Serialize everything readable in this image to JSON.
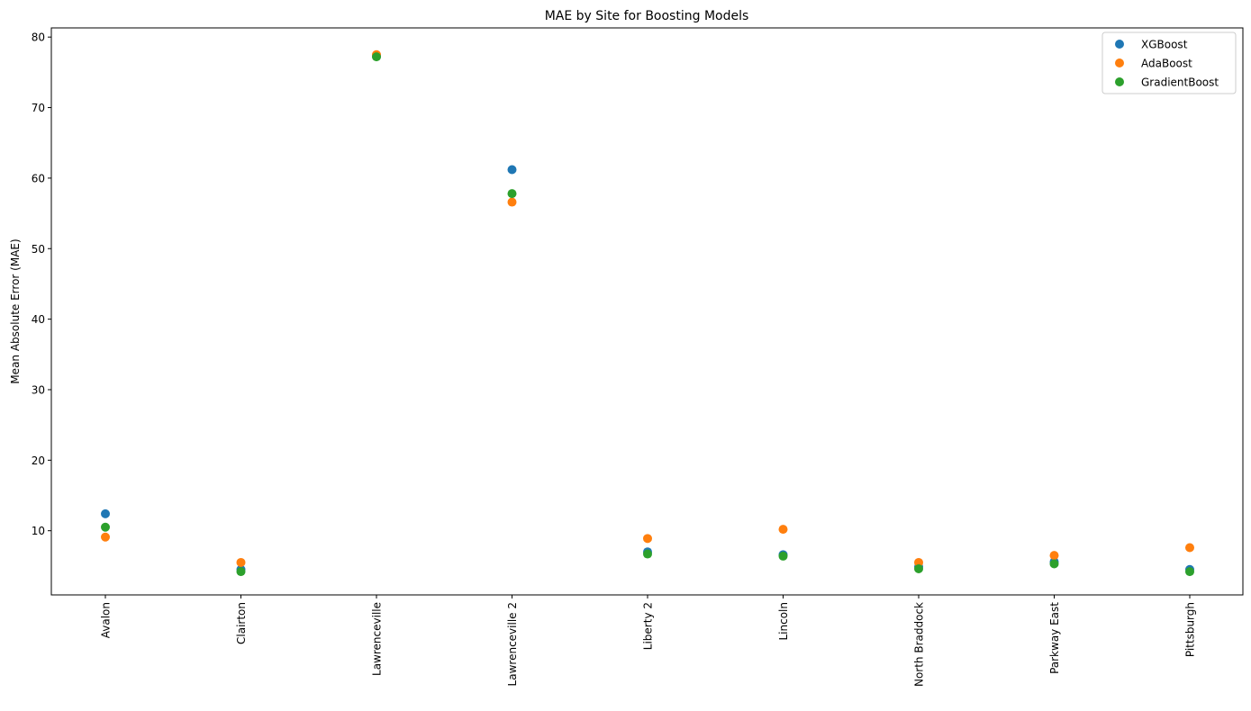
{
  "chart_data": {
    "type": "scatter",
    "title": "MAE by Site for Boosting Models",
    "xlabel": "",
    "ylabel": "Mean Absolute Error (MAE)",
    "categories": [
      "Avalon",
      "Clairton",
      "Lawrenceville",
      "Lawrenceville 2",
      "Liberty 2",
      "Lincoln",
      "North Braddock",
      "Parkway East",
      "Pittsburgh"
    ],
    "ylim": [
      0.9,
      81.3
    ],
    "yticks": [
      10,
      20,
      30,
      40,
      50,
      60,
      70,
      80
    ],
    "grid": false,
    "legend_position": "top-right",
    "series": [
      {
        "name": "XGBoost",
        "color": "#1f77b4",
        "values": [
          12.4,
          4.5,
          77.3,
          61.2,
          7.0,
          6.6,
          4.9,
          5.6,
          4.5
        ]
      },
      {
        "name": "AdaBoost",
        "color": "#ff7f0e",
        "values": [
          9.1,
          5.5,
          77.5,
          56.6,
          8.9,
          10.2,
          5.5,
          6.5,
          7.6
        ]
      },
      {
        "name": "GradientBoost",
        "color": "#2ca02c",
        "values": [
          10.5,
          4.2,
          77.2,
          57.8,
          6.7,
          6.4,
          4.6,
          5.3,
          4.2
        ]
      }
    ]
  }
}
